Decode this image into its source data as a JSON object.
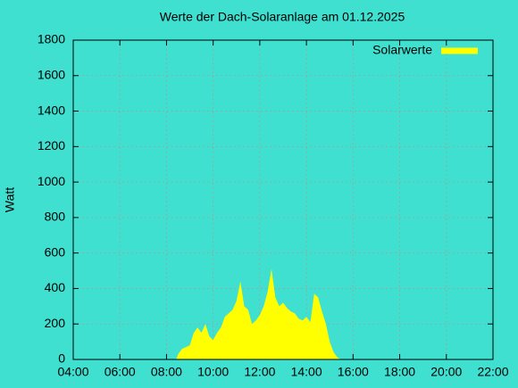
{
  "chart_data": {
    "type": "area",
    "title": "Werte der Dach-Solaranlage am 01.12.2025",
    "y_label": "Watt",
    "x": [
      "08:25",
      "08:30",
      "08:40",
      "09:00",
      "09:10",
      "09:20",
      "09:30",
      "09:40",
      "09:50",
      "10:00",
      "10:10",
      "10:20",
      "10:30",
      "10:40",
      "10:50",
      "11:00",
      "11:10",
      "11:20",
      "11:30",
      "11:40",
      "11:50",
      "12:00",
      "12:10",
      "12:20",
      "12:30",
      "12:40",
      "12:50",
      "13:00",
      "13:10",
      "13:20",
      "13:30",
      "13:40",
      "13:50",
      "14:00",
      "14:10",
      "14:20",
      "14:30",
      "14:40",
      "14:50",
      "15:00",
      "15:10",
      "15:20",
      "15:30"
    ],
    "series": [
      {
        "name": "Solarwerte",
        "color": "#ffff00",
        "values": [
          0,
          30,
          60,
          80,
          150,
          180,
          150,
          200,
          130,
          110,
          150,
          180,
          240,
          260,
          280,
          330,
          440,
          300,
          280,
          200,
          220,
          250,
          300,
          380,
          510,
          350,
          300,
          320,
          290,
          270,
          260,
          230,
          220,
          240,
          210,
          370,
          350,
          270,
          200,
          100,
          40,
          10,
          0
        ]
      }
    ],
    "xlim": [
      "04:00",
      "22:00"
    ],
    "xticks": [
      "04:00",
      "06:00",
      "08:00",
      "10:00",
      "12:00",
      "14:00",
      "16:00",
      "18:00",
      "20:00",
      "22:00"
    ],
    "ylim": [
      0,
      1800
    ],
    "yticks": [
      0,
      200,
      400,
      600,
      800,
      1000,
      1200,
      1400,
      1600,
      1800
    ],
    "grid": true,
    "legend": "top-right"
  }
}
